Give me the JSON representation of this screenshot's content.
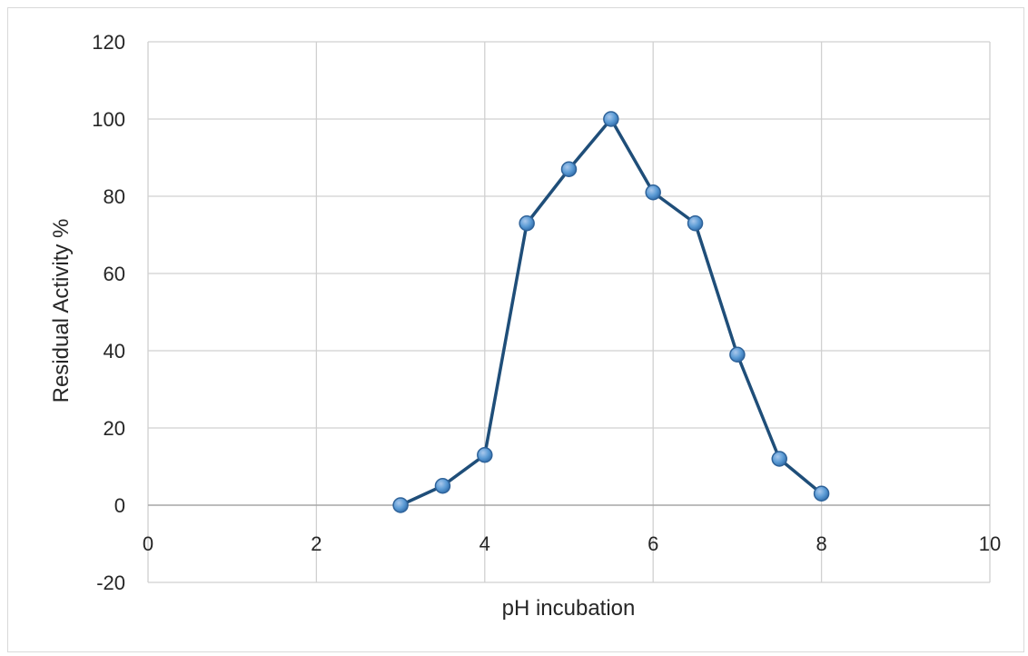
{
  "chart_data": {
    "type": "scatter",
    "title": "",
    "xlabel": "pH  incubation",
    "ylabel": "Residual Activity %",
    "xlim": [
      0,
      10
    ],
    "ylim": [
      -20,
      120
    ],
    "x_ticks": [
      0,
      2,
      4,
      6,
      8,
      10
    ],
    "y_ticks": [
      -20,
      0,
      20,
      40,
      60,
      80,
      100,
      120
    ],
    "grid": true,
    "legend": "none",
    "series": [
      {
        "color": "#1f4e79",
        "marker_color": "#5b9bd5",
        "connected": true,
        "x": [
          3,
          3.5,
          4,
          4.5,
          5,
          5.5,
          6,
          6.5,
          7,
          7.5,
          8
        ],
        "y": [
          0,
          5,
          13,
          73,
          87,
          100,
          81,
          73,
          39,
          12,
          3
        ]
      }
    ]
  }
}
